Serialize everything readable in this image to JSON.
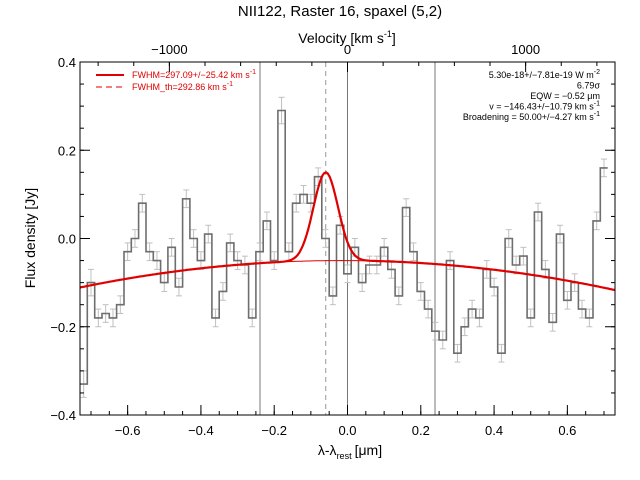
{
  "chart_data": {
    "type": "line",
    "title": "NII122, Raster 16, spaxel (5,2)",
    "xlabel": "λ-λ",
    "xlabel_sub": "rest",
    "xlabel_unit": "[μm]",
    "ylabel": "Flux density [Jy]",
    "top_axis_label": "Velocity [km s",
    "top_axis_label_sup": "-1",
    "top_axis_label_end": "]",
    "xlim": [
      -0.73,
      0.73
    ],
    "ylim": [
      -0.4,
      0.4
    ],
    "x_ticks": [
      -0.6,
      -0.4,
      -0.2,
      0.0,
      0.2,
      0.4,
      0.6
    ],
    "x_tick_labels": [
      "−0.6",
      "−0.4",
      "−0.2",
      "0.0",
      "0.2",
      "0.4",
      "0.6"
    ],
    "y_ticks": [
      -0.4,
      -0.2,
      0.0,
      0.2,
      0.4
    ],
    "y_tick_labels": [
      "−0.4",
      "−0.2",
      "0.0",
      "0.2",
      "0.4"
    ],
    "top_ticks_wavelength": [
      -0.4861,
      0.0,
      0.4861
    ],
    "top_tick_labels": [
      "−1000",
      "0",
      "1000"
    ],
    "grid": false,
    "vlines_solid": [
      -0.2388,
      0.0,
      0.2388
    ],
    "vline_dashed": -0.0594,
    "series": [
      {
        "name": "spectrum",
        "style": "steps",
        "color": "#6e6e6e",
        "err_color": "#c0c0c0",
        "x": [
          -0.72,
          -0.7,
          -0.68,
          -0.66,
          -0.64,
          -0.62,
          -0.6,
          -0.58,
          -0.56,
          -0.54,
          -0.52,
          -0.5,
          -0.48,
          -0.46,
          -0.44,
          -0.42,
          -0.4,
          -0.38,
          -0.36,
          -0.34,
          -0.32,
          -0.3,
          -0.28,
          -0.26,
          -0.24,
          -0.22,
          -0.2,
          -0.18,
          -0.16,
          -0.14,
          -0.12,
          -0.1,
          -0.08,
          -0.06,
          -0.04,
          -0.02,
          0.0,
          0.02,
          0.04,
          0.06,
          0.08,
          0.1,
          0.12,
          0.14,
          0.16,
          0.18,
          0.2,
          0.22,
          0.24,
          0.26,
          0.28,
          0.3,
          0.32,
          0.34,
          0.36,
          0.38,
          0.4,
          0.42,
          0.44,
          0.46,
          0.48,
          0.5,
          0.52,
          0.54,
          0.56,
          0.58,
          0.6,
          0.62,
          0.64,
          0.66,
          0.68,
          0.7
        ],
        "y": [
          -0.33,
          -0.1,
          -0.18,
          -0.17,
          -0.18,
          -0.15,
          -0.03,
          0.0,
          0.08,
          -0.03,
          -0.05,
          -0.1,
          -0.02,
          -0.11,
          0.09,
          0.0,
          -0.05,
          0.01,
          -0.18,
          -0.12,
          -0.01,
          -0.05,
          -0.06,
          -0.18,
          -0.03,
          0.04,
          -0.05,
          0.29,
          -0.03,
          0.08,
          0.1,
          0.08,
          0.14,
          0.0,
          -0.13,
          0.03,
          -0.08,
          -0.02,
          -0.1,
          -0.06,
          -0.06,
          -0.02,
          -0.07,
          -0.13,
          0.07,
          -0.03,
          -0.12,
          -0.16,
          -0.21,
          -0.23,
          -0.05,
          -0.26,
          -0.2,
          -0.16,
          -0.18,
          -0.07,
          -0.11,
          -0.26,
          0.0,
          -0.06,
          -0.04,
          -0.18,
          0.06,
          -0.07,
          -0.19,
          0.01,
          -0.14,
          -0.1,
          -0.16,
          -0.18,
          0.04,
          0.16
        ],
        "err": [
          0.03,
          0.03,
          0.02,
          0.02,
          0.02,
          0.02,
          0.02,
          0.02,
          0.02,
          0.02,
          0.02,
          0.02,
          0.02,
          0.02,
          0.02,
          0.02,
          0.02,
          0.02,
          0.02,
          0.02,
          0.02,
          0.02,
          0.02,
          0.02,
          0.02,
          0.02,
          0.02,
          0.03,
          0.02,
          0.02,
          0.02,
          0.02,
          0.02,
          0.02,
          0.02,
          0.02,
          0.02,
          0.02,
          0.02,
          0.02,
          0.02,
          0.02,
          0.02,
          0.02,
          0.02,
          0.02,
          0.02,
          0.02,
          0.02,
          0.02,
          0.02,
          0.02,
          0.02,
          0.02,
          0.02,
          0.02,
          0.02,
          0.02,
          0.02,
          0.02,
          0.02,
          0.02,
          0.02,
          0.02,
          0.02,
          0.02,
          0.02,
          0.02,
          0.02,
          0.02,
          0.02,
          0.02
        ]
      },
      {
        "name": "FWHM=297.09+/−25.42 km s",
        "name_sup": "-1",
        "style": "line",
        "color": "#e00000",
        "model": "baseline+gaussian",
        "baseline_coeffs": [
          -0.05,
          -0.004,
          -0.12
        ],
        "gauss": {
          "amp": 0.2,
          "center": -0.0594,
          "sigma": 0.0335
        }
      },
      {
        "name": "FWHM_th=292.86 km s",
        "name_sup": "-1",
        "style": "dashed",
        "color": "#e00000"
      }
    ],
    "legend_position": "top-left",
    "annotations": [
      {
        "text": "5.30e-18+/−7.81e-19 W m",
        "sup": "-2"
      },
      {
        "text": "6.79σ",
        "sup": ""
      },
      {
        "text": "EQW = −0.52 μm",
        "sup": ""
      },
      {
        "text": "v = −146.43+/−10.79 km s",
        "sup": "-1"
      },
      {
        "text": "Broadening = 50.00+/−4.27 km s",
        "sup": "-1"
      }
    ]
  }
}
